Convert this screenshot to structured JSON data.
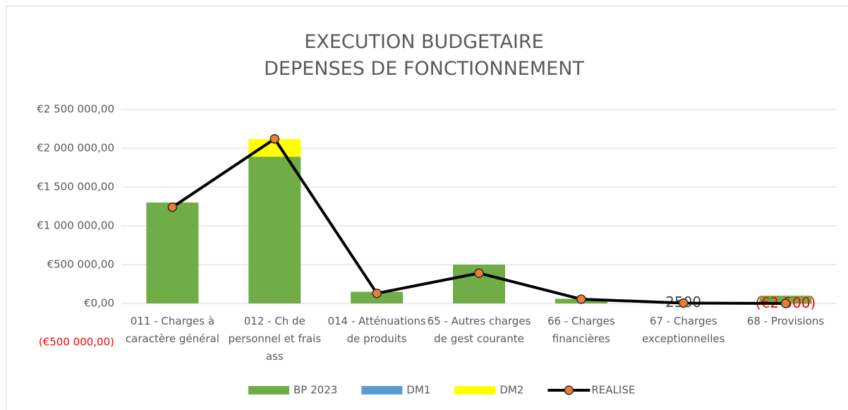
{
  "chart_data": {
    "type": "bar",
    "title": [
      "EXECUTION BUDGETAIRE",
      "DEPENSES DE FONCTIONNEMENT"
    ],
    "categories": [
      "011 - Charges à caractère général",
      "012 - Ch de personnel et frais ass",
      "014 - Atténuations de produits",
      "65 - Autres charges de gest courante",
      "66 - Charges financières",
      "67 - Charges exceptionnelles",
      "68 - Provisions"
    ],
    "series": [
      {
        "name": "BP 2023",
        "color": "#70ad47",
        "values": [
          1300000,
          1890000,
          150000,
          500000,
          60000,
          null,
          100000
        ]
      },
      {
        "name": "DM1",
        "color": "#5b9bd5",
        "values": [
          null,
          null,
          null,
          null,
          null,
          2500,
          -2500
        ],
        "value_labels": [
          null,
          null,
          null,
          null,
          null,
          "2500",
          "(€2 500)"
        ]
      },
      {
        "name": "DM2",
        "color": "#ffff00",
        "values": [
          null,
          227000,
          null,
          null,
          null,
          null,
          null
        ]
      },
      {
        "name": "REALISE",
        "type": "line",
        "color": "#000000",
        "marker_color": "#ed7d31",
        "values": [
          1240000,
          2120000,
          130000,
          390000,
          55000,
          5000,
          0
        ]
      }
    ],
    "ylim": [
      -500000,
      2500000
    ],
    "yticks": [
      {
        "value": -500000,
        "label": "(€500 000,00)"
      },
      {
        "value": 0,
        "label": "€0,00"
      },
      {
        "value": 500000,
        "label": "€500 000,00"
      },
      {
        "value": 1000000,
        "label": "€1 000 000,00"
      },
      {
        "value": 1500000,
        "label": "€1 500 000,00"
      },
      {
        "value": 2000000,
        "label": "€2 000 000,00"
      },
      {
        "value": 2500000,
        "label": "€2 500 000,00"
      }
    ],
    "grid": true,
    "legend": "bottom"
  }
}
